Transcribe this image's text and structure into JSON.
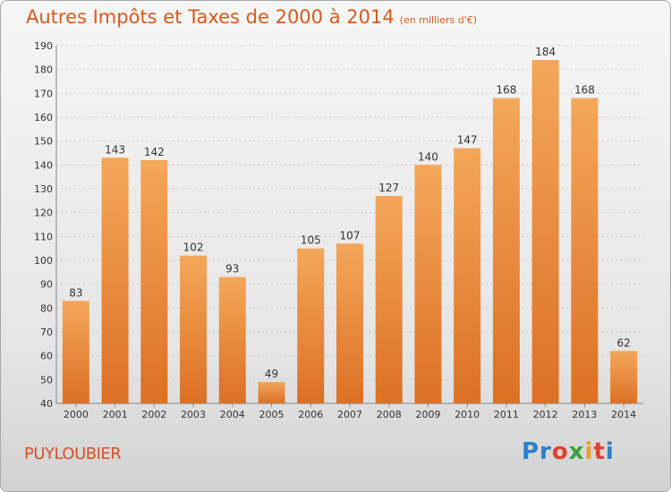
{
  "title": "Autres Impôts et Taxes de 2000 à 2014",
  "subtitle": "(en milliers d'€)",
  "commune": "PUYLOUBIER",
  "logo": {
    "p1": "Pr",
    "p2": "o",
    "p3": "x",
    "p4": "i",
    "p5": "t",
    "p6": "i"
  },
  "colors": {
    "bar_top": "#f4a75a",
    "bar_bottom": "#dc7024",
    "title": "#d85a1a",
    "grid": "#c8c8c8"
  },
  "chart_data": {
    "type": "bar",
    "categories": [
      "2000",
      "2001",
      "2002",
      "2003",
      "2004",
      "2005",
      "2006",
      "2007",
      "2008",
      "2009",
      "2010",
      "2011",
      "2012",
      "2013",
      "2014"
    ],
    "values": [
      83,
      143,
      142,
      102,
      93,
      49,
      105,
      107,
      127,
      140,
      147,
      168,
      184,
      168,
      62
    ],
    "ylim": [
      40,
      190
    ],
    "yticks": [
      40,
      50,
      60,
      70,
      80,
      90,
      100,
      110,
      120,
      130,
      140,
      150,
      160,
      170,
      180,
      190
    ],
    "grid": true
  }
}
